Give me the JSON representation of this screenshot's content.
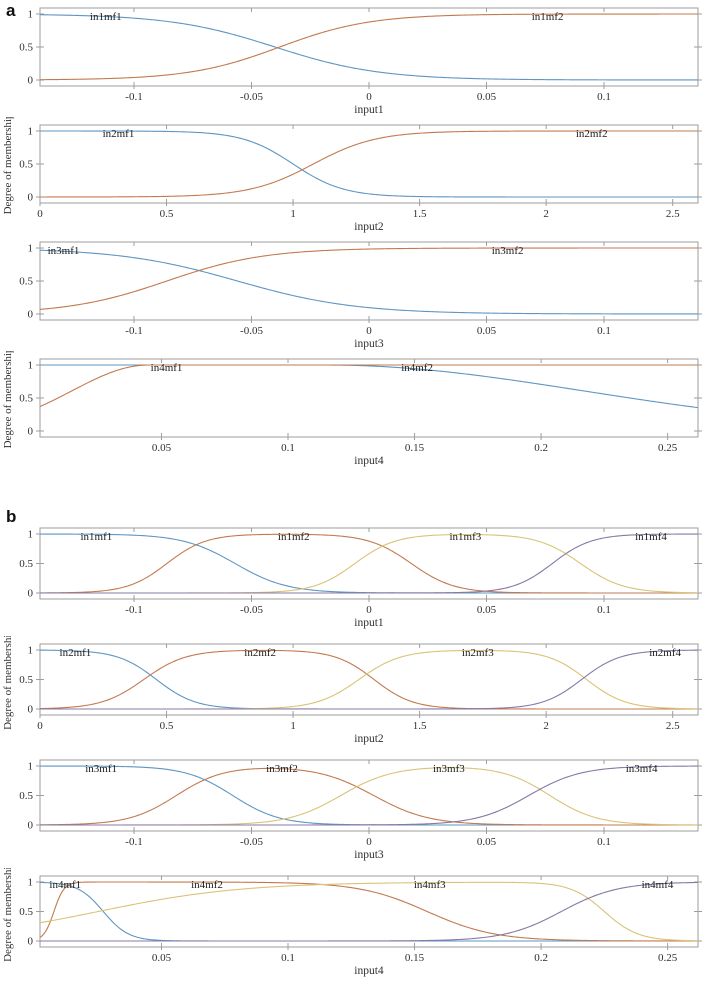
{
  "panels": [
    {
      "letter": "a"
    },
    {
      "letter": "b"
    }
  ],
  "colors": {
    "mf1": "#5e95c3",
    "mf2": "#c3794f",
    "mf3": "#d9c377",
    "mf4": "#8878a4",
    "frame": "#9d9d9d",
    "tick_text": "#2f2f2f",
    "mf_label_text": "#1b1b1b"
  },
  "chart_data": [
    {
      "panel": "a",
      "type": "line",
      "xlabel": "input1",
      "ylabel": "",
      "xlim": [
        -0.14,
        0.14
      ],
      "ylim": [
        0,
        1
      ],
      "xticks": [
        -0.1,
        -0.05,
        0,
        0.05,
        0.1
      ],
      "xtick_labels": [
        "-0.1",
        "-0.05",
        "0",
        "0.05",
        "0.1"
      ],
      "yticks": [
        0,
        0.5,
        1
      ],
      "ytick_labels": [
        "0",
        "0.5",
        "1"
      ],
      "series": [
        {
          "name": "in1mf1",
          "color": "mf1",
          "label_x": -0.112,
          "mf": {
            "kind": "fall",
            "a": 45,
            "c": -0.04
          }
        },
        {
          "name": "in1mf2",
          "color": "mf2",
          "label_x": 0.076,
          "mf": {
            "kind": "rise",
            "a": 52,
            "c": -0.038
          }
        }
      ]
    },
    {
      "panel": "a",
      "type": "line",
      "xlabel": "input2",
      "ylabel": "Degree of membership",
      "xlim": [
        0,
        2.6
      ],
      "ylim": [
        0,
        1
      ],
      "xticks": [
        0,
        0.5,
        1,
        1.5,
        2,
        2.5
      ],
      "xtick_labels": [
        "0",
        "0.5",
        "1",
        "1.5",
        "2",
        "2.5"
      ],
      "yticks": [
        0,
        0.5,
        1
      ],
      "ytick_labels": [
        "0",
        "0.5",
        "1"
      ],
      "series": [
        {
          "name": "in2mf1",
          "color": "mf1",
          "label_x": 0.31,
          "mf": {
            "kind": "fall",
            "a": 10,
            "c": 1.0
          }
        },
        {
          "name": "in2mf2",
          "color": "mf2",
          "label_x": 2.18,
          "mf": {
            "kind": "rise",
            "a": 8,
            "c": 1.08
          }
        }
      ]
    },
    {
      "panel": "a",
      "type": "line",
      "xlabel": "input3",
      "ylabel": "",
      "xlim": [
        -0.14,
        0.14
      ],
      "ylim": [
        0,
        1
      ],
      "xticks": [
        -0.1,
        -0.05,
        0,
        0.05,
        0.1
      ],
      "xtick_labels": [
        "-0.1",
        "-0.05",
        "0",
        "0.05",
        "0.1"
      ],
      "yticks": [
        0,
        0.5,
        1
      ],
      "ytick_labels": [
        "0",
        "0.5",
        "1"
      ],
      "series": [
        {
          "name": "in3mf1",
          "color": "mf1",
          "label_x": -0.13,
          "mf": {
            "kind": "fall",
            "a": 40,
            "c": -0.056
          }
        },
        {
          "name": "in3mf2",
          "color": "mf2",
          "label_x": 0.059,
          "mf": {
            "kind": "rise",
            "a": 48,
            "c": -0.086
          }
        }
      ]
    },
    {
      "panel": "a",
      "type": "line",
      "xlabel": "input4",
      "ylabel": "Degree of membership",
      "xlim": [
        0.002,
        0.262
      ],
      "ylim": [
        0,
        1
      ],
      "xticks": [
        0.05,
        0.1,
        0.15,
        0.2,
        0.25
      ],
      "xtick_labels": [
        "0.05",
        "0.1",
        "0.15",
        "0.2",
        "0.25"
      ],
      "yticks": [
        0,
        0.5,
        1
      ],
      "ytick_labels": [
        "0",
        "0.5",
        "1"
      ],
      "series": [
        {
          "name": "in4mf1",
          "color": "mf1",
          "label_x": 0.052,
          "mf": {
            "kind": "gfall_sat",
            "c": 0.115,
            "s": 0.102
          }
        },
        {
          "name": "in4mf2",
          "color": "mf2",
          "label_x": 0.151,
          "mf": {
            "kind": "grise_sat",
            "c": 0.045,
            "s": 0.0305
          }
        }
      ]
    },
    {
      "panel": "b",
      "type": "line",
      "xlabel": "input1",
      "ylabel": "",
      "xlim": [
        -0.14,
        0.14
      ],
      "ylim": [
        0,
        1
      ],
      "xticks": [
        -0.1,
        -0.05,
        0,
        0.05,
        0.1
      ],
      "xtick_labels": [
        "-0.1",
        "-0.05",
        "0",
        "0.05",
        "0.1"
      ],
      "yticks": [
        0,
        0.5,
        1
      ],
      "ytick_labels": [
        "0",
        "0.5",
        "1"
      ],
      "series": [
        {
          "name": "in1mf1",
          "color": "mf1",
          "label_x": -0.116,
          "mf": {
            "kind": "fall",
            "a": 90,
            "c": -0.057
          }
        },
        {
          "name": "in1mf2",
          "color": "mf2",
          "label_x": -0.032,
          "mf": {
            "kind": "plateau",
            "a1": 120,
            "c1": -0.086,
            "a2": 110,
            "c2": 0.018
          }
        },
        {
          "name": "in1mf3",
          "color": "mf3",
          "label_x": 0.041,
          "mf": {
            "kind": "plateau",
            "a1": 115,
            "c1": -0.006,
            "a2": 110,
            "c2": 0.09
          }
        },
        {
          "name": "in1mf4",
          "color": "mf4",
          "label_x": 0.12,
          "mf": {
            "kind": "rise",
            "a": 120,
            "c": 0.078
          }
        }
      ]
    },
    {
      "panel": "b",
      "type": "line",
      "xlabel": "input2",
      "ylabel": "Degree of membership",
      "xlim": [
        0,
        2.6
      ],
      "ylim": [
        0,
        1
      ],
      "xticks": [
        0,
        0.5,
        1,
        1.5,
        2,
        2.5
      ],
      "xtick_labels": [
        "0",
        "0.5",
        "1",
        "1.5",
        "2",
        "2.5"
      ],
      "yticks": [
        0,
        0.5,
        1
      ],
      "ytick_labels": [
        "0",
        "0.5",
        "1"
      ],
      "series": [
        {
          "name": "in2mf1",
          "color": "mf1",
          "label_x": 0.14,
          "mf": {
            "kind": "fall",
            "a": 13,
            "c": 0.46
          }
        },
        {
          "name": "in2mf2",
          "color": "mf2",
          "label_x": 0.87,
          "mf": {
            "kind": "plateau",
            "a1": 12,
            "c1": 0.41,
            "a2": 13,
            "c2": 1.32
          }
        },
        {
          "name": "in2mf3",
          "color": "mf3",
          "label_x": 1.73,
          "mf": {
            "kind": "plateau",
            "a1": 12,
            "c1": 1.26,
            "a2": 13,
            "c2": 2.16
          }
        },
        {
          "name": "in2mf4",
          "color": "mf4",
          "label_x": 2.47,
          "mf": {
            "kind": "rise",
            "a": 13,
            "c": 2.14
          }
        }
      ]
    },
    {
      "panel": "b",
      "type": "line",
      "xlabel": "input3",
      "ylabel": "",
      "xlim": [
        -0.14,
        0.14
      ],
      "ylim": [
        0,
        1
      ],
      "xticks": [
        -0.1,
        -0.05,
        0,
        0.05,
        0.1
      ],
      "xtick_labels": [
        "-0.1",
        "-0.05",
        "0",
        "0.05",
        "0.1"
      ],
      "yticks": [
        0,
        0.5,
        1
      ],
      "ytick_labels": [
        "0",
        "0.5",
        "1"
      ],
      "series": [
        {
          "name": "in3mf1",
          "color": "mf1",
          "label_x": -0.114,
          "mf": {
            "kind": "fall",
            "a": 100,
            "c": -0.058
          }
        },
        {
          "name": "in3mf2",
          "color": "mf2",
          "label_x": -0.037,
          "mf": {
            "kind": "plateau",
            "a1": 100,
            "c1": -0.082,
            "a2": 85,
            "c2": 0.002
          }
        },
        {
          "name": "in3mf3",
          "color": "mf3",
          "label_x": 0.034,
          "mf": {
            "kind": "plateau",
            "a1": 90,
            "c1": -0.012,
            "a2": 100,
            "c2": 0.077
          }
        },
        {
          "name": "in3mf4",
          "color": "mf4",
          "label_x": 0.116,
          "mf": {
            "kind": "rise",
            "a": 90,
            "c": 0.068
          }
        }
      ]
    },
    {
      "panel": "b",
      "type": "line",
      "xlabel": "input4",
      "ylabel": "Degree of membership",
      "xlim": [
        0.002,
        0.262
      ],
      "ylim": [
        0,
        1
      ],
      "xticks": [
        0.05,
        0.1,
        0.15,
        0.2,
        0.25
      ],
      "xtick_labels": [
        "0.05",
        "0.1",
        "0.15",
        "0.2",
        "0.25"
      ],
      "yticks": [
        0,
        0.5,
        1
      ],
      "ytick_labels": [
        "0",
        "0.5",
        "1"
      ],
      "series": [
        {
          "name": "in4mf1",
          "color": "mf1",
          "label_x": 0.012,
          "mf": {
            "kind": "fall",
            "a": 200,
            "c": 0.027
          }
        },
        {
          "name": "in4mf2",
          "color": "mf2",
          "label_x": 0.068,
          "mf": {
            "kind": "plateau",
            "a1": 500,
            "c1": 0.0075,
            "a2": 75,
            "c2": 0.155
          }
        },
        {
          "name": "in4mf3",
          "color": "mf3",
          "label_x": 0.156,
          "mf": {
            "kind": "plateau",
            "a1": 35,
            "c1": 0.025,
            "a2": 150,
            "c2": 0.225
          }
        },
        {
          "name": "in4mf4",
          "color": "mf4",
          "label_x": 0.246,
          "mf": {
            "kind": "rise",
            "a": 90,
            "c": 0.208
          }
        }
      ]
    }
  ]
}
